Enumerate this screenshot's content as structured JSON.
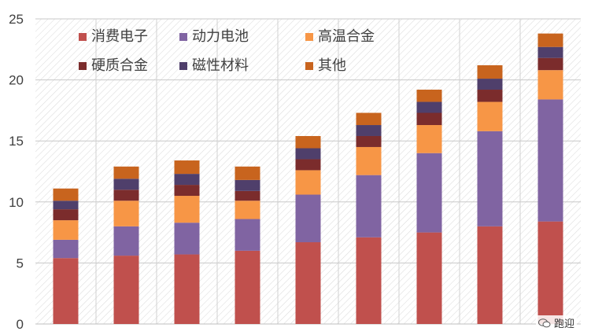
{
  "chart_data": {
    "type": "bar",
    "stacked": true,
    "title": "",
    "xlabel": "",
    "ylabel": "",
    "ylim": [
      0,
      25
    ],
    "yticks": [
      "0",
      "5",
      "10",
      "15",
      "20",
      "25"
    ],
    "grid": true,
    "legend": "top-left",
    "categories": [
      "",
      "",
      "",
      "",
      "",
      "",
      "",
      "",
      ""
    ],
    "series": [
      {
        "name": "消费电子",
        "color": "#c0504d",
        "values": [
          5.4,
          5.6,
          5.7,
          6.0,
          6.7,
          7.1,
          7.5,
          8.0,
          8.4
        ]
      },
      {
        "name": "动力电池",
        "color": "#8064a2",
        "values": [
          1.5,
          2.4,
          2.6,
          2.6,
          3.9,
          5.1,
          6.5,
          7.8,
          10.0
        ]
      },
      {
        "name": "高温合金",
        "color": "#f79646",
        "values": [
          1.6,
          2.1,
          2.2,
          1.5,
          2.0,
          2.3,
          2.3,
          2.4,
          2.4
        ]
      },
      {
        "name": "硬质合金",
        "color": "#7b2c2c",
        "values": [
          0.9,
          0.9,
          0.9,
          0.8,
          0.9,
          0.9,
          1.0,
          1.0,
          1.0
        ]
      },
      {
        "name": "磁性材料",
        "color": "#4f3f6b",
        "values": [
          0.7,
          0.9,
          0.9,
          0.9,
          0.9,
          0.9,
          0.9,
          0.9,
          0.9
        ]
      },
      {
        "name": "其他",
        "color": "#c8641e",
        "values": [
          1.0,
          1.0,
          1.1,
          1.1,
          1.0,
          1.0,
          1.0,
          1.1,
          1.1
        ]
      }
    ]
  },
  "watermark": {
    "text": "跑迎"
  }
}
